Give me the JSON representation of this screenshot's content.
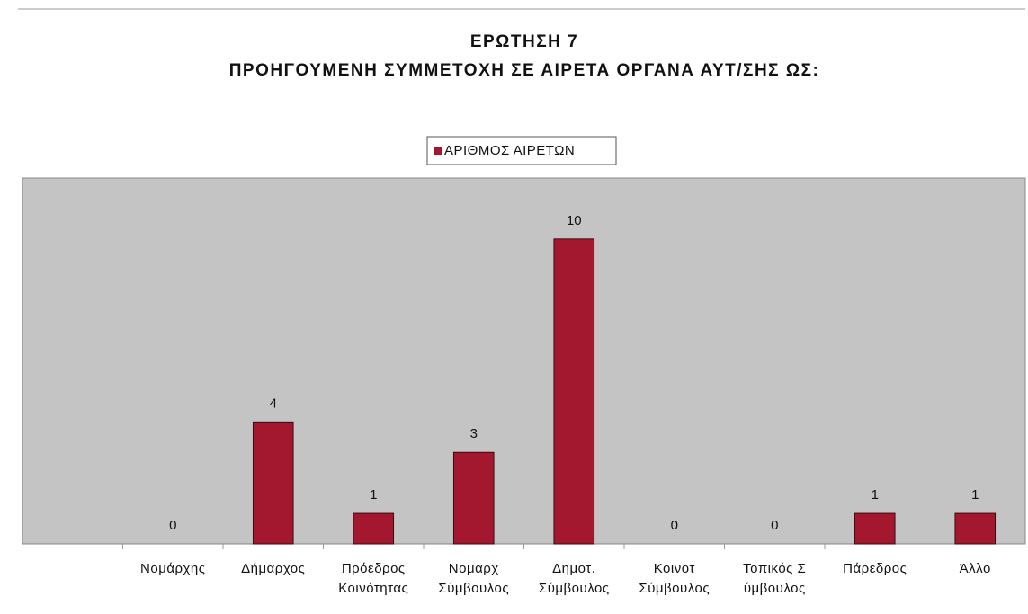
{
  "chart_data": {
    "type": "bar",
    "title": "ΕΡΩΤΗΣΗ 7",
    "subtitle": "ΠΡΟΗΓΟΥΜΕΝΗ ΣΥΜΜΕΤΟΧΗ ΣΕ ΑΙΡΕΤΑ ΟΡΓΑΝΑ ΑΥΤ/ΣΗΣ ΩΣ:",
    "categories": [
      null,
      "Νομάρχης",
      "Δήμαρχος",
      "Πρόεδρος\nΚοινότητας",
      "Νομαρχ\nΣύμβουλος",
      "Δημοτ.\nΣύμβουλος",
      "Κοινοτ\nΣύμβουλος",
      "Τοπικός Σ\nύμβουλος",
      "Πάρεδρος",
      "Άλλο"
    ],
    "series": [
      {
        "name": "ΑΡΙΘΜΟΣ ΑΙΡΕΤΩΝ",
        "color": "#a3182e",
        "values": [
          null,
          0,
          4,
          1,
          3,
          10,
          0,
          0,
          1,
          1
        ]
      }
    ],
    "ylim": [
      0,
      12
    ],
    "legend": "top"
  }
}
